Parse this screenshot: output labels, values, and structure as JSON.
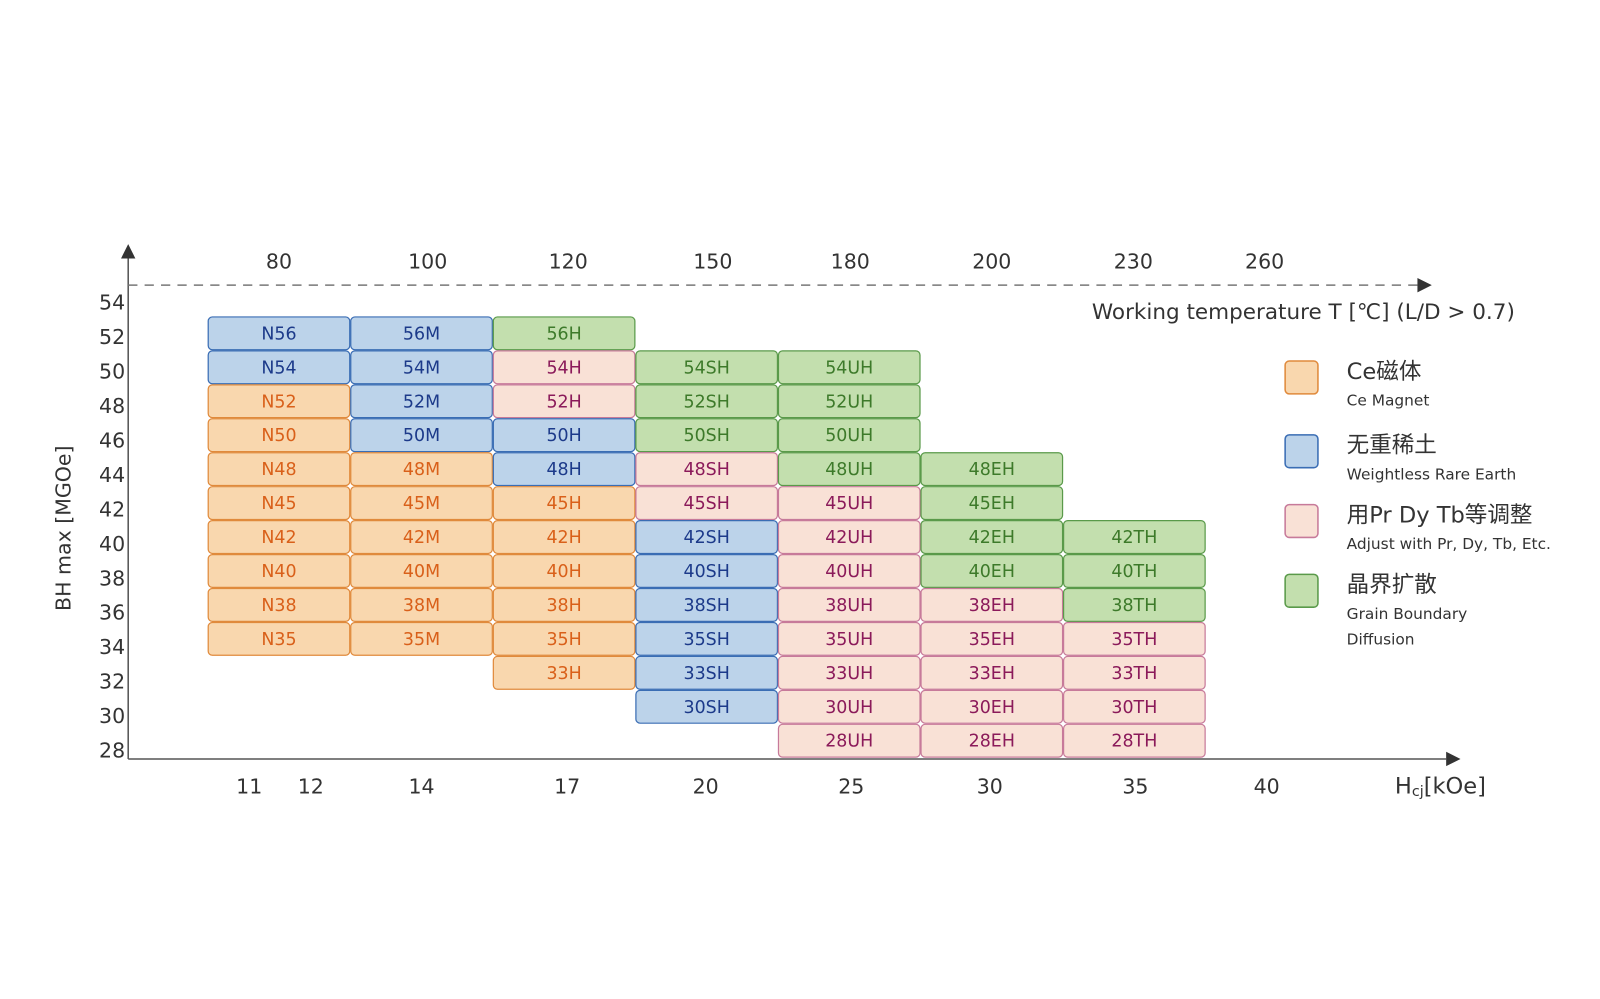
{
  "y_axis": {
    "label": "BH max [MGOe]",
    "ticks": [
      54,
      52,
      50,
      48,
      46,
      44,
      42,
      40,
      38,
      36,
      34,
      32,
      30,
      28
    ]
  },
  "top_axis": {
    "label": "Working temperature T [℃] (L/D > 0.7)",
    "ticks": [
      80,
      100,
      120,
      150,
      180,
      200,
      230,
      260
    ]
  },
  "x_axis": {
    "label": {
      "main": "H",
      "sub": "cj",
      "unit": "[kOe]"
    },
    "ticks": [
      11,
      12,
      14,
      17,
      20,
      25,
      30,
      35,
      40
    ]
  },
  "legend": [
    {
      "title": "Ce磁体",
      "subtitle": [
        "Ce Magnet"
      ],
      "fill": "#f9d7ae",
      "stroke": "#e08a3c",
      "text_color": "#d9601a"
    },
    {
      "title": "无重稀土",
      "subtitle": [
        "Weightless Rare Earth"
      ],
      "fill": "#bcd3ea",
      "stroke": "#3a6db4",
      "text_color": "#1c3a8a"
    },
    {
      "title": "用Pr Dy Tb等调整",
      "subtitle": [
        "Adjust with Pr, Dy, Tb, Etc."
      ],
      "fill": "#f9e1d6",
      "stroke": "#c77a9a",
      "text_color": "#8b1a5a"
    },
    {
      "title": "晶界扩散",
      "subtitle": [
        "Grain Boundary",
        "Diffusion"
      ],
      "fill": "#c3dfae",
      "stroke": "#5a9a4a",
      "text_color": "#3d7a2a"
    }
  ],
  "grid": [
    [
      {
        "label": "N56",
        "legend": 1
      },
      {
        "label": "56M",
        "legend": 1
      },
      {
        "label": "56H",
        "legend": 3
      },
      null,
      null,
      null,
      null
    ],
    [
      {
        "label": "N54",
        "legend": 1
      },
      {
        "label": "54M",
        "legend": 1
      },
      {
        "label": "54H",
        "legend": 2
      },
      {
        "label": "54SH",
        "legend": 3
      },
      {
        "label": "54UH",
        "legend": 3
      },
      null,
      null
    ],
    [
      {
        "label": "N52",
        "legend": 0
      },
      {
        "label": "52M",
        "legend": 1
      },
      {
        "label": "52H",
        "legend": 2
      },
      {
        "label": "52SH",
        "legend": 3
      },
      {
        "label": "52UH",
        "legend": 3
      },
      null,
      null
    ],
    [
      {
        "label": "N50",
        "legend": 0
      },
      {
        "label": "50M",
        "legend": 1
      },
      {
        "label": "50H",
        "legend": 1
      },
      {
        "label": "50SH",
        "legend": 3
      },
      {
        "label": "50UH",
        "legend": 3
      },
      null,
      null
    ],
    [
      {
        "label": "N48",
        "legend": 0
      },
      {
        "label": "48M",
        "legend": 0
      },
      {
        "label": "48H",
        "legend": 1
      },
      {
        "label": "48SH",
        "legend": 2
      },
      {
        "label": "48UH",
        "legend": 3
      },
      {
        "label": "48EH",
        "legend": 3
      },
      null
    ],
    [
      {
        "label": "N45",
        "legend": 0
      },
      {
        "label": "45M",
        "legend": 0
      },
      {
        "label": "45H",
        "legend": 0
      },
      {
        "label": "45SH",
        "legend": 2
      },
      {
        "label": "45UH",
        "legend": 2
      },
      {
        "label": "45EH",
        "legend": 3
      },
      null
    ],
    [
      {
        "label": "N42",
        "legend": 0
      },
      {
        "label": "42M",
        "legend": 0
      },
      {
        "label": "42H",
        "legend": 0
      },
      {
        "label": "42SH",
        "legend": 1
      },
      {
        "label": "42UH",
        "legend": 2
      },
      {
        "label": "42EH",
        "legend": 3
      },
      {
        "label": "42TH",
        "legend": 3
      }
    ],
    [
      {
        "label": "N40",
        "legend": 0
      },
      {
        "label": "40M",
        "legend": 0
      },
      {
        "label": "40H",
        "legend": 0
      },
      {
        "label": "40SH",
        "legend": 1
      },
      {
        "label": "40UH",
        "legend": 2
      },
      {
        "label": "40EH",
        "legend": 3
      },
      {
        "label": "40TH",
        "legend": 3
      }
    ],
    [
      {
        "label": "N38",
        "legend": 0
      },
      {
        "label": "38M",
        "legend": 0
      },
      {
        "label": "38H",
        "legend": 0
      },
      {
        "label": "38SH",
        "legend": 1
      },
      {
        "label": "38UH",
        "legend": 2
      },
      {
        "label": "38EH",
        "legend": 2
      },
      {
        "label": "38TH",
        "legend": 3
      }
    ],
    [
      {
        "label": "N35",
        "legend": 0
      },
      {
        "label": "35M",
        "legend": 0
      },
      {
        "label": "35H",
        "legend": 0
      },
      {
        "label": "35SH",
        "legend": 1
      },
      {
        "label": "35UH",
        "legend": 2
      },
      {
        "label": "35EH",
        "legend": 2
      },
      {
        "label": "35TH",
        "legend": 2
      }
    ],
    [
      null,
      null,
      {
        "label": "33H",
        "legend": 0
      },
      {
        "label": "33SH",
        "legend": 1
      },
      {
        "label": "33UH",
        "legend": 2
      },
      {
        "label": "33EH",
        "legend": 2
      },
      {
        "label": "33TH",
        "legend": 2
      }
    ],
    [
      null,
      null,
      null,
      {
        "label": "30SH",
        "legend": 1
      },
      {
        "label": "30UH",
        "legend": 2
      },
      {
        "label": "30EH",
        "legend": 2
      },
      {
        "label": "30TH",
        "legend": 2
      }
    ],
    [
      null,
      null,
      null,
      null,
      {
        "label": "28UH",
        "legend": 2
      },
      {
        "label": "28EH",
        "legend": 2
      },
      {
        "label": "28TH",
        "legend": 2
      }
    ]
  ]
}
